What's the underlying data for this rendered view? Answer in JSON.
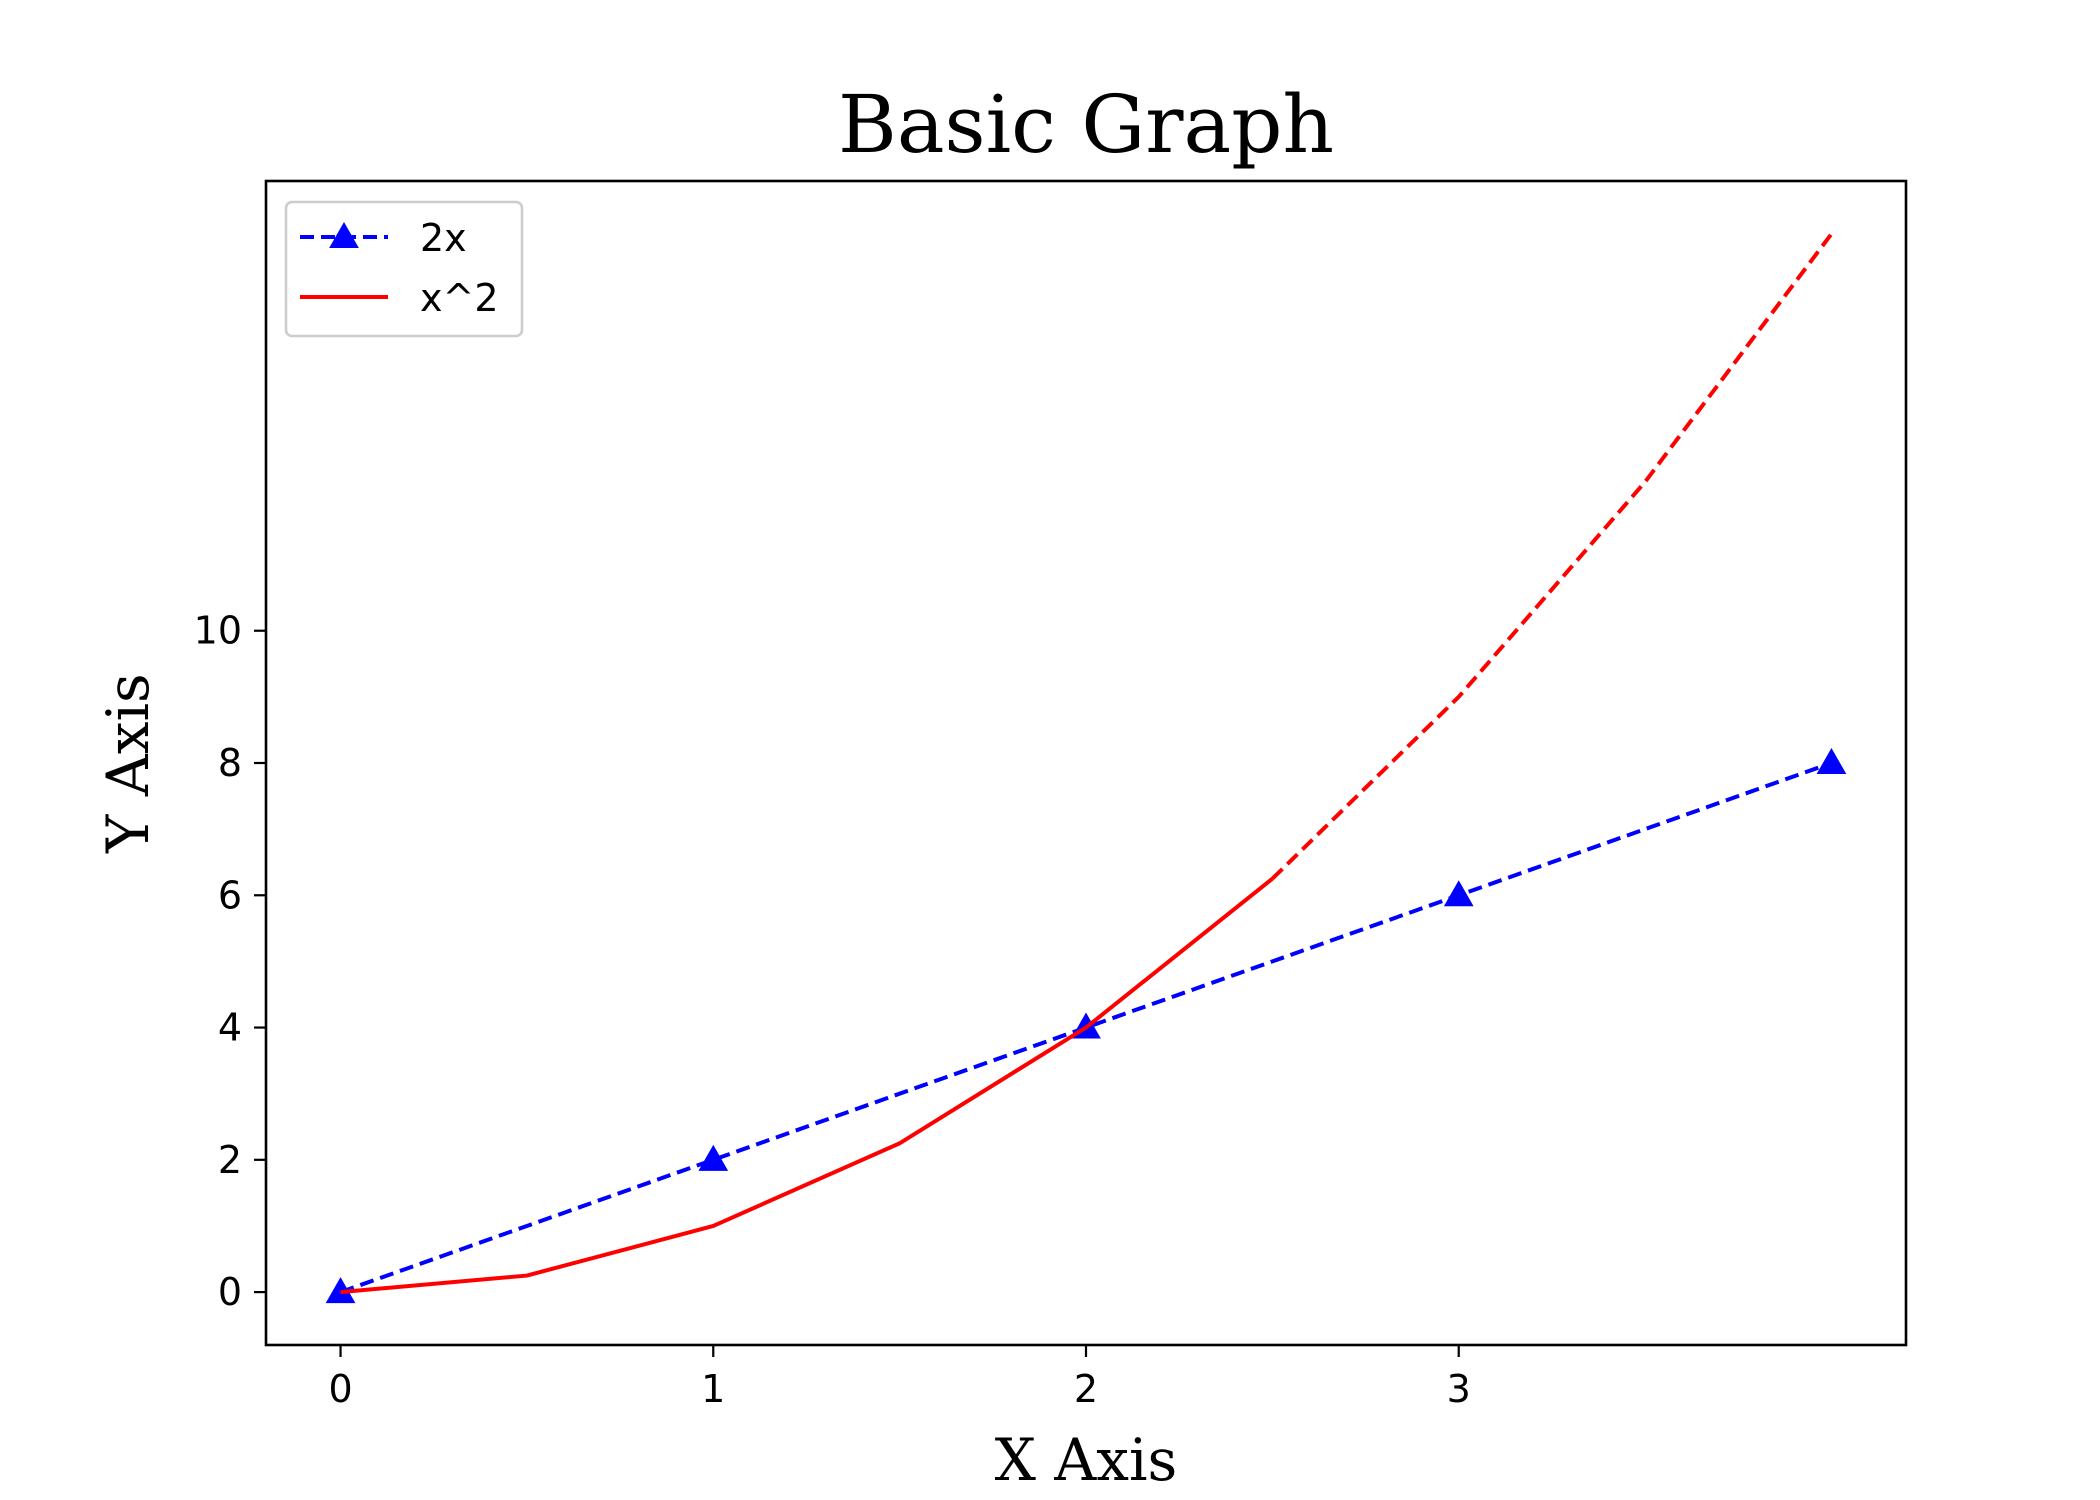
{
  "chart_data": {
    "type": "line",
    "title": "Basic Graph",
    "xlabel": "X Axis",
    "ylabel": "Y Axis",
    "xlim": [
      -0.2,
      4.2
    ],
    "ylim": [
      -0.8,
      16.8
    ],
    "x_ticks": [
      0,
      1,
      2,
      3
    ],
    "y_ticks": [
      0,
      2,
      4,
      6,
      8,
      10
    ],
    "grid": false,
    "legend_position": "top-left",
    "series": [
      {
        "name": "2x",
        "color": "#0000ff",
        "linestyle": "dashed",
        "marker": "triangle",
        "x": [
          0,
          1,
          2,
          3,
          4
        ],
        "y": [
          0,
          2,
          4,
          6,
          8
        ]
      },
      {
        "name": "x^2",
        "color": "#ff0000",
        "linestyle": "solid",
        "marker": "none",
        "x": [
          0,
          0.5,
          1,
          1.5,
          2,
          2.5
        ],
        "y": [
          0,
          0.25,
          1,
          2.25,
          4,
          6.25
        ]
      },
      {
        "name": "",
        "color": "#ff0000",
        "linestyle": "dashed",
        "marker": "none",
        "x": [
          2.5,
          3,
          3.5,
          4
        ],
        "y": [
          6.25,
          9,
          12.25,
          16
        ]
      }
    ]
  }
}
